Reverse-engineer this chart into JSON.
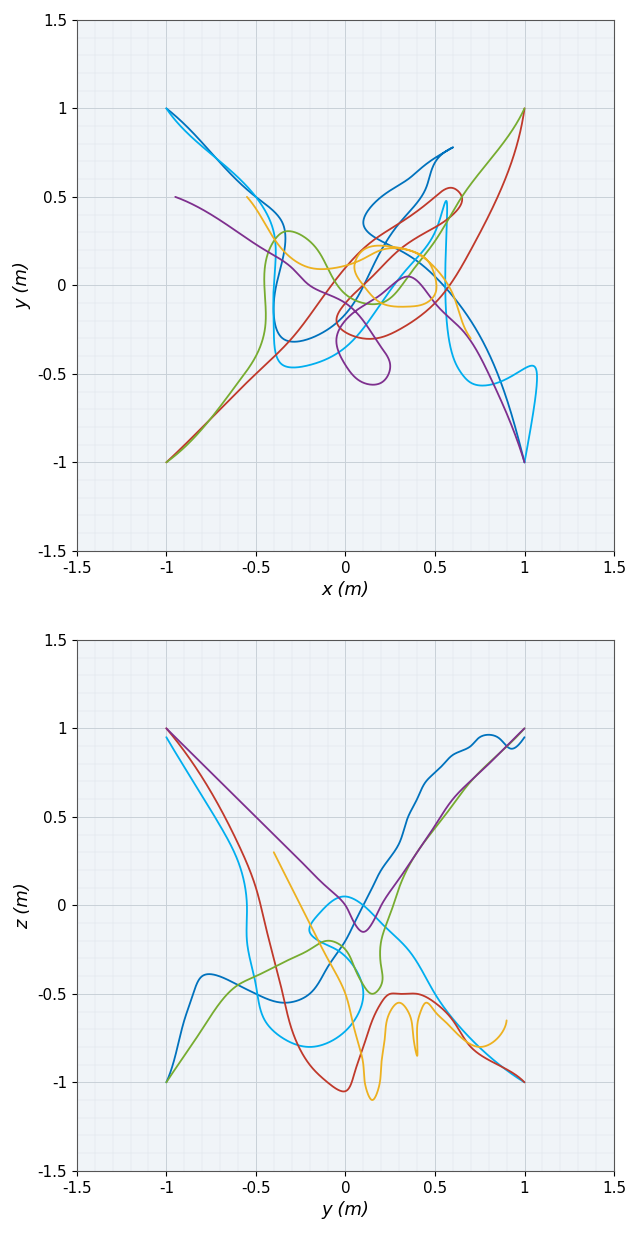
{
  "colors": [
    "#0072BD",
    "#00AEEF",
    "#C0392B",
    "#77AC30",
    "#7E2F8E",
    "#EDB120"
  ],
  "xlim": [
    -1.5,
    1.5
  ],
  "ylim": [
    -1.5,
    1.5
  ],
  "xlabel1": "x (m)",
  "ylabel1": "y (m)",
  "xlabel2": "y (m)",
  "ylabel2": "z (m)",
  "xticks": [
    -1.5,
    -1.0,
    -0.5,
    0.0,
    0.5,
    1.0,
    1.5
  ],
  "yticks": [
    -1.5,
    -1.0,
    -0.5,
    0.0,
    0.5,
    1.0,
    1.5
  ],
  "figsize": [
    6.4,
    12.33
  ],
  "dpi": 100
}
